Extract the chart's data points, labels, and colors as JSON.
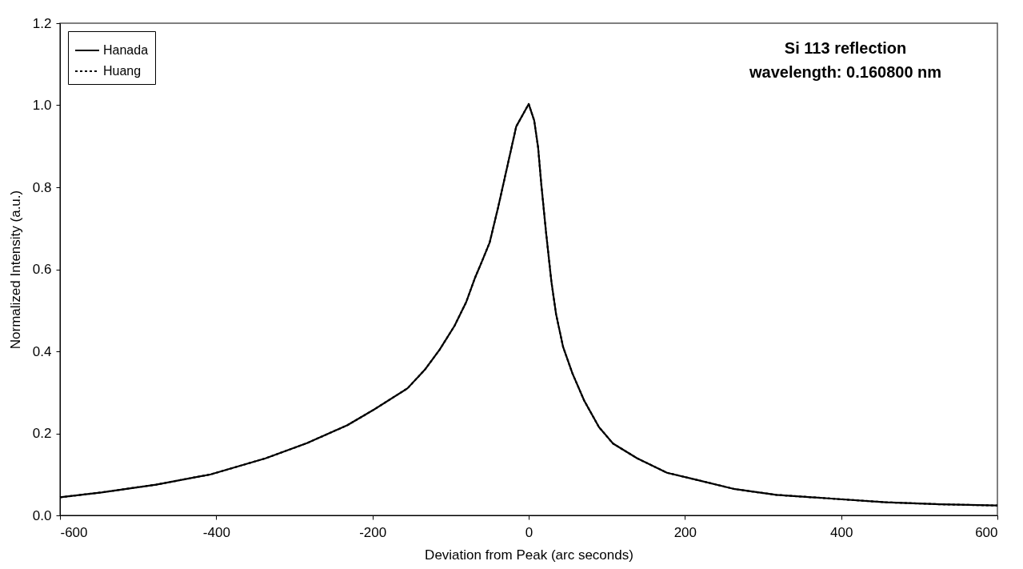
{
  "chart_data": {
    "type": "line",
    "xlabel": "Deviation from Peak (arc seconds)",
    "ylabel": "Normalized Intensity (a.u.)",
    "annotations": [
      "Si 113 reflection",
      "wavelength: 0.160800 nm"
    ],
    "xlim": [
      -600,
      600
    ],
    "xticks": [
      -600,
      -400,
      -200,
      0,
      200,
      400,
      600
    ],
    "ylim": [
      0,
      1.2
    ],
    "yticks": [
      {
        "value": 0,
        "label": "0.0"
      },
      0.2,
      0.4,
      0.6,
      0.8,
      {
        "value": 1,
        "label": "1.0"
      },
      1.2
    ],
    "grid": false,
    "legend": "top left",
    "marker": "none",
    "x": [
      -600,
      -547,
      -477,
      -407,
      -337,
      -284,
      -232,
      -198,
      -155,
      -133,
      -114,
      -95,
      -80,
      -69,
      -61,
      -50,
      -39,
      -27,
      -16,
      0,
      7,
      12,
      16,
      22,
      29,
      35,
      44,
      56,
      71,
      90,
      108,
      139,
      177,
      212,
      264,
      317,
      387,
      457,
      527,
      600
    ],
    "series": [
      {
        "name": "Hanada",
        "color": "#000000",
        "line_style": "solid",
        "values": [
          0.044,
          0.056,
          0.075,
          0.1,
          0.139,
          0.176,
          0.22,
          0.258,
          0.31,
          0.355,
          0.404,
          0.462,
          0.52,
          0.578,
          0.614,
          0.665,
          0.752,
          0.854,
          0.948,
          1.003,
          0.963,
          0.898,
          0.81,
          0.694,
          0.571,
          0.491,
          0.411,
          0.346,
          0.28,
          0.215,
          0.175,
          0.139,
          0.104,
          0.088,
          0.064,
          0.05,
          0.041,
          0.032,
          0.027,
          0.024
        ]
      },
      {
        "name": "Huang",
        "color": "#000000",
        "line_style": "dotted",
        "values": [
          0.044,
          0.056,
          0.075,
          0.1,
          0.139,
          0.176,
          0.22,
          0.258,
          0.31,
          0.355,
          0.404,
          0.462,
          0.52,
          0.578,
          0.614,
          0.665,
          0.752,
          0.854,
          0.948,
          1.003,
          0.963,
          0.898,
          0.81,
          0.694,
          0.571,
          0.491,
          0.411,
          0.346,
          0.28,
          0.215,
          0.175,
          0.139,
          0.104,
          0.088,
          0.064,
          0.05,
          0.041,
          0.032,
          0.027,
          0.024
        ]
      }
    ]
  }
}
